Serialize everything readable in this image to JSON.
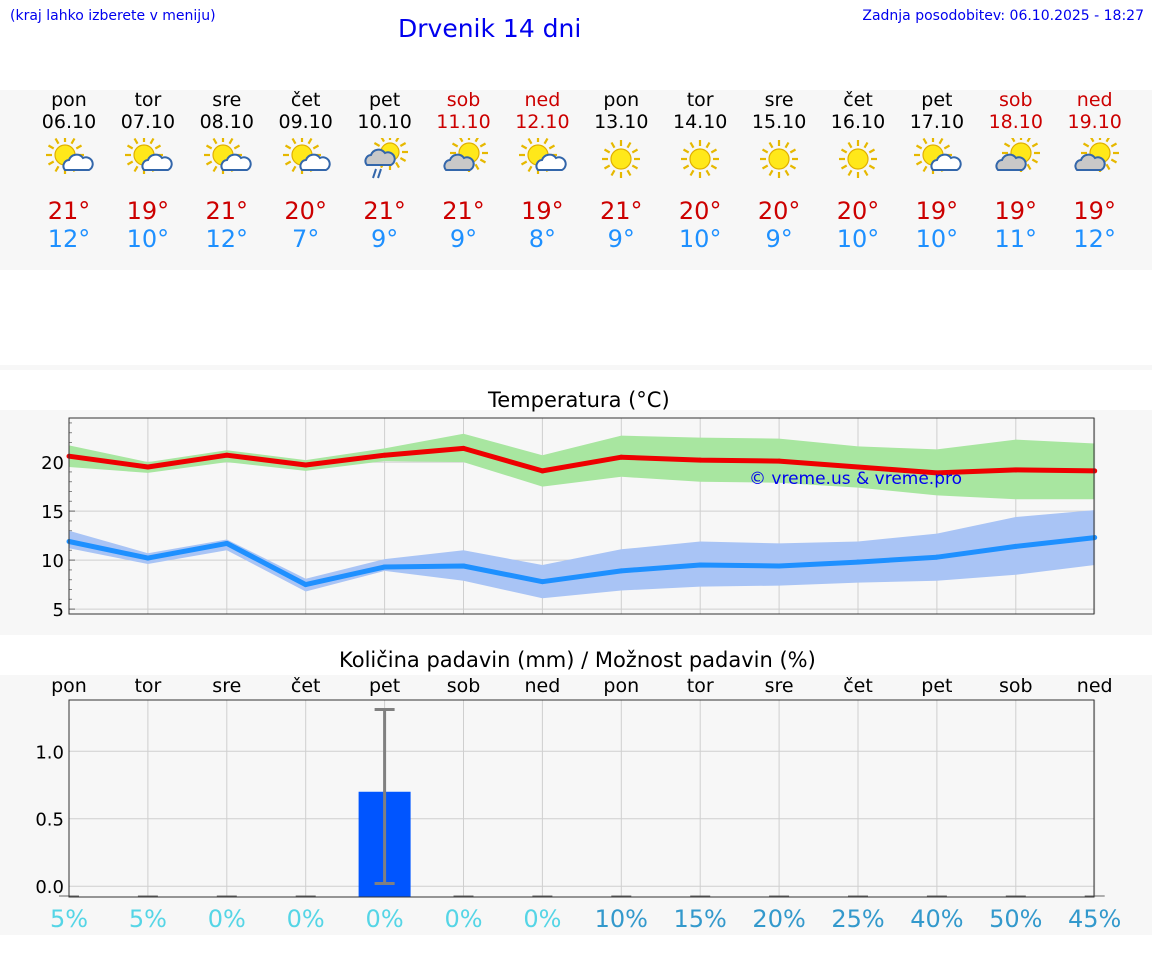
{
  "header": {
    "left_note": "(kraj lahko izberete v meniju)",
    "title": "Drvenik 14 dni",
    "updated": "Zadnja posodobitev: 06.10.2025 - 18:27"
  },
  "days": [
    {
      "name": "pon",
      "date": "06.10",
      "weekend": false,
      "icon": "sun-cloud-icon",
      "tmax": "21°",
      "tmin": "12°"
    },
    {
      "name": "tor",
      "date": "07.10",
      "weekend": false,
      "icon": "sun-cloud-icon",
      "tmax": "19°",
      "tmin": "10°"
    },
    {
      "name": "sre",
      "date": "08.10",
      "weekend": false,
      "icon": "sun-cloud-icon",
      "tmax": "21°",
      "tmin": "12°"
    },
    {
      "name": "čet",
      "date": "09.10",
      "weekend": false,
      "icon": "sun-cloud-icon",
      "tmax": "20°",
      "tmin": "7°"
    },
    {
      "name": "pet",
      "date": "10.10",
      "weekend": false,
      "icon": "sun-cloud-rain-icon",
      "tmax": "21°",
      "tmin": "9°"
    },
    {
      "name": "sob",
      "date": "11.10",
      "weekend": true,
      "icon": "sun-grey-cloud-icon",
      "tmax": "21°",
      "tmin": "9°"
    },
    {
      "name": "ned",
      "date": "12.10",
      "weekend": true,
      "icon": "sun-cloud-icon",
      "tmax": "19°",
      "tmin": "8°"
    },
    {
      "name": "pon",
      "date": "13.10",
      "weekend": false,
      "icon": "sun-icon",
      "tmax": "21°",
      "tmin": "9°"
    },
    {
      "name": "tor",
      "date": "14.10",
      "weekend": false,
      "icon": "sun-icon",
      "tmax": "20°",
      "tmin": "10°"
    },
    {
      "name": "sre",
      "date": "15.10",
      "weekend": false,
      "icon": "sun-icon",
      "tmax": "20°",
      "tmin": "9°"
    },
    {
      "name": "čet",
      "date": "16.10",
      "weekend": false,
      "icon": "sun-icon",
      "tmax": "20°",
      "tmin": "10°"
    },
    {
      "name": "pet",
      "date": "17.10",
      "weekend": false,
      "icon": "sun-cloud-icon",
      "tmax": "19°",
      "tmin": "10°"
    },
    {
      "name": "sob",
      "date": "18.10",
      "weekend": true,
      "icon": "sun-grey-cloud-icon",
      "tmax": "19°",
      "tmin": "11°"
    },
    {
      "name": "ned",
      "date": "19.10",
      "weekend": true,
      "icon": "sun-grey-cloud-icon",
      "tmax": "19°",
      "tmin": "12°"
    }
  ],
  "colors": {
    "weekend": "#cc0000",
    "tmax": "#cc0000",
    "tmin": "#1e90ff",
    "max_line": "#ee0000",
    "max_band": "#a8e6a0",
    "min_line": "#1e90ff",
    "min_band": "#a9c4f5",
    "precip_bar": "#0055ff",
    "prob_low": "#55d5e6",
    "prob_high": "#3399cc"
  },
  "chart_data": [
    {
      "type": "line",
      "title": "Temperatura (°C)",
      "watermark": "© vreme.us & vreme.pro",
      "x": [
        "06.10",
        "07.10",
        "08.10",
        "09.10",
        "10.10",
        "11.10",
        "12.10",
        "13.10",
        "14.10",
        "15.10",
        "16.10",
        "17.10",
        "18.10",
        "19.10"
      ],
      "ylim": [
        4.5,
        24.5
      ],
      "yticks": [
        5,
        10,
        15,
        20
      ],
      "grid": true,
      "series": [
        {
          "values": [
            20.6,
            19.5,
            20.7,
            19.7,
            20.7,
            21.4,
            19.1,
            20.5,
            20.2,
            20.1,
            19.5,
            18.9,
            19.2,
            19.1
          ],
          "band_high": [
            21.7,
            20.0,
            21.2,
            20.2,
            21.4,
            22.9,
            20.7,
            22.7,
            22.5,
            22.4,
            21.6,
            21.3,
            22.3,
            21.9
          ],
          "band_low": [
            19.5,
            18.9,
            20.0,
            19.1,
            20.1,
            20.0,
            17.5,
            18.5,
            18.0,
            17.9,
            17.4,
            16.6,
            16.2,
            16.2
          ]
        },
        {
          "values": [
            11.9,
            10.2,
            11.7,
            7.5,
            9.3,
            9.4,
            7.8,
            8.9,
            9.5,
            9.4,
            9.8,
            10.3,
            11.4,
            12.3
          ],
          "band_high": [
            13.0,
            10.7,
            12.1,
            8.1,
            10.1,
            11.0,
            9.5,
            11.1,
            11.9,
            11.7,
            11.9,
            12.7,
            14.4,
            15.1
          ],
          "band_low": [
            11.2,
            9.6,
            11.0,
            6.8,
            8.9,
            7.9,
            6.1,
            6.9,
            7.3,
            7.4,
            7.7,
            7.9,
            8.5,
            9.5
          ]
        }
      ]
    },
    {
      "type": "bar",
      "title": "Količina padavin (mm) / Možnost padavin (%)",
      "categories": [
        "pon",
        "tor",
        "sre",
        "čet",
        "pet",
        "sob",
        "ned",
        "pon",
        "tor",
        "sre",
        "čet",
        "pet",
        "sob",
        "ned"
      ],
      "values": [
        0,
        0,
        0,
        0,
        0.7,
        0,
        0,
        0,
        0,
        0,
        0,
        0,
        0,
        0
      ],
      "error_high": [
        0,
        0,
        0,
        0,
        1.31,
        0,
        0,
        0,
        0,
        0,
        0,
        0,
        0,
        0
      ],
      "error_low": [
        0,
        0,
        0,
        0,
        0.02,
        0,
        0,
        0,
        0,
        0,
        0,
        0,
        0,
        0
      ],
      "ylim": [
        -0.08,
        1.38
      ],
      "yticks": [
        0.0,
        0.5,
        1.0
      ],
      "ytick_labels": [
        "0.0",
        "0.5",
        "1.0"
      ],
      "grid": true,
      "probability": [
        "5%",
        "5%",
        "0%",
        "0%",
        "0%",
        "0%",
        "0%",
        "10%",
        "15%",
        "20%",
        "25%",
        "40%",
        "50%",
        "45%"
      ]
    }
  ]
}
